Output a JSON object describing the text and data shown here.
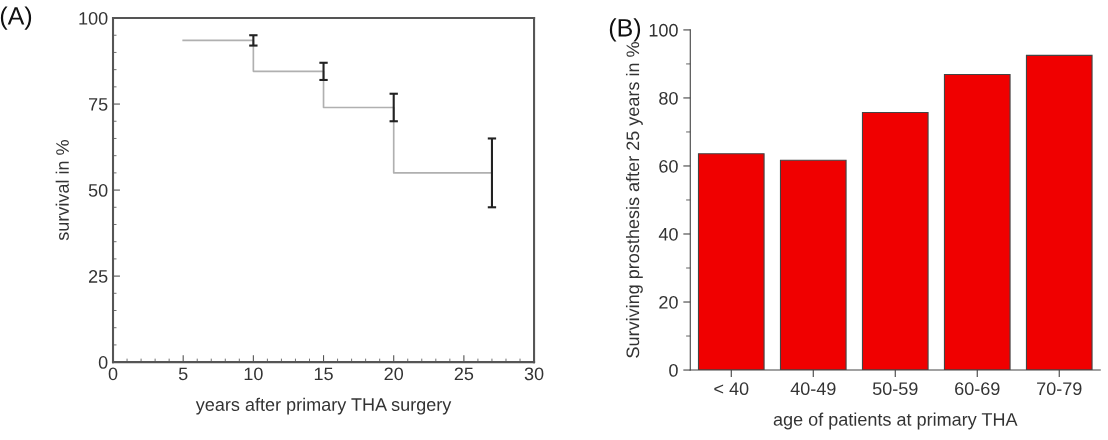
{
  "chart_data": [
    {
      "type": "step",
      "title": "(A)",
      "xlabel": "years after primary THA surgery",
      "ylabel": "survival in %",
      "x": [
        5,
        10,
        15,
        20,
        27
      ],
      "series": [
        {
          "color": "#b0b0b0",
          "values": [
            93.5,
            93.5,
            84.5,
            74,
            55
          ],
          "errors": [
            null,
            1.5,
            2.5,
            4,
            10
          ]
        }
      ],
      "xlim": [
        0,
        30
      ],
      "xticks": [
        0,
        5,
        10,
        15,
        20,
        25,
        30
      ],
      "ylim": [
        0,
        100
      ],
      "yticks": [
        0,
        25,
        50,
        75,
        100
      ],
      "grid": false,
      "legend": false
    },
    {
      "type": "bar",
      "title": "(B)",
      "xlabel": "age of patients at primary THA",
      "ylabel": "Surviving prosthesis after 25 years in %",
      "categories": [
        "< 40",
        "40-49",
        "50-59",
        "60-69",
        "70-79"
      ],
      "series": [
        {
          "color": "#f00000",
          "values": [
            63.6,
            61.7,
            75.7,
            86.9,
            92.5
          ]
        }
      ],
      "ylim": [
        0,
        100
      ],
      "yticks": [
        0,
        20,
        40,
        60,
        80,
        100
      ],
      "grid": false,
      "legend": false
    }
  ]
}
